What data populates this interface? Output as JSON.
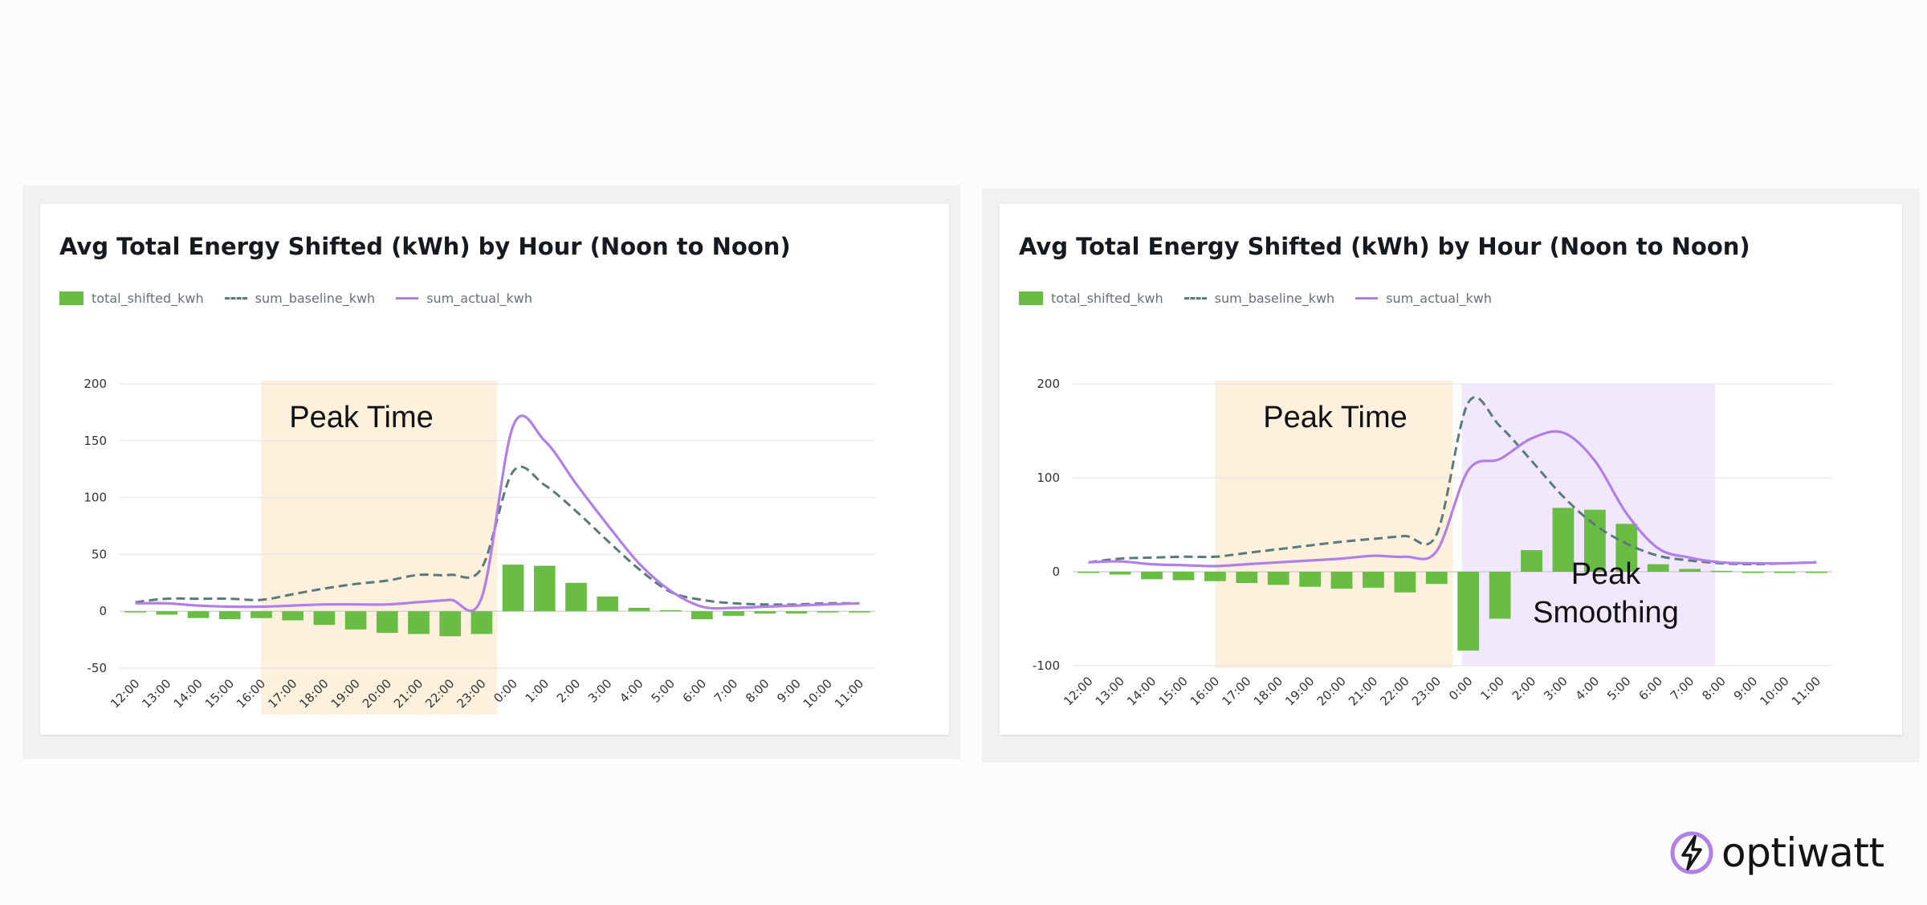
{
  "brand": {
    "name": "optiwatt",
    "logo_icon": "bolt-icon",
    "accent": "#b07fe8"
  },
  "colors": {
    "bar": "#69bd45",
    "baseline": "#5b7a7a",
    "actual": "#b07fe8",
    "peak_band": "#fdf0dc",
    "smoothing_band": "#f1e8fd"
  },
  "chart_data": [
    {
      "type": "bar",
      "title": "Avg Total Energy Shifted (kWh) by Hour (Noon to Noon)",
      "legend": [
        "total_shifted_kwh",
        "sum_baseline_kwh",
        "sum_actual_kwh"
      ],
      "categories": [
        "12:00",
        "13:00",
        "14:00",
        "15:00",
        "16:00",
        "17:00",
        "18:00",
        "19:00",
        "20:00",
        "21:00",
        "22:00",
        "23:00",
        "0:00",
        "1:00",
        "2:00",
        "3:00",
        "4:00",
        "5:00",
        "6:00",
        "7:00",
        "8:00",
        "9:00",
        "10:00",
        "11:00"
      ],
      "yticks": [
        "200",
        "150",
        "100",
        "50",
        "0",
        "-50"
      ],
      "ylim": [
        -50,
        200
      ],
      "grid": true,
      "series": [
        {
          "name": "total_shifted_kwh",
          "kind": "bar",
          "values": [
            -1,
            -3,
            -6,
            -7,
            -6,
            -8,
            -12,
            -16,
            -19,
            -20,
            -22,
            -20,
            41,
            40,
            25,
            13,
            3,
            1,
            -7,
            -4,
            -2,
            -2,
            -1,
            -1
          ]
        },
        {
          "name": "sum_baseline_kwh",
          "kind": "dashed-line",
          "values": [
            8,
            11,
            11,
            11,
            10,
            15,
            20,
            24,
            27,
            32,
            32,
            38,
            123,
            111,
            88,
            62,
            37,
            17,
            10,
            7,
            6,
            6,
            7,
            7
          ]
        },
        {
          "name": "sum_actual_kwh",
          "kind": "line",
          "values": [
            7,
            7,
            5,
            4,
            4,
            5,
            6,
            6,
            6,
            8,
            10,
            12,
            163,
            150,
            112,
            76,
            42,
            18,
            4,
            3,
            4,
            5,
            6,
            7
          ]
        }
      ],
      "bands": [
        {
          "label": "Peak Time",
          "from": 4.5,
          "to": 12.0,
          "color": "#fdf0dc"
        }
      ]
    },
    {
      "type": "bar",
      "title": "Avg Total Energy Shifted (kWh) by Hour (Noon to Noon)",
      "legend": [
        "total_shifted_kwh",
        "sum_baseline_kwh",
        "sum_actual_kwh"
      ],
      "categories": [
        "12:00",
        "13:00",
        "14:00",
        "15:00",
        "16:00",
        "17:00",
        "18:00",
        "19:00",
        "20:00",
        "21:00",
        "22:00",
        "23:00",
        "0:00",
        "1:00",
        "2:00",
        "3:00",
        "4:00",
        "5:00",
        "6:00",
        "7:00",
        "8:00",
        "9:00",
        "10:00",
        "11:00"
      ],
      "yticks": [
        "200",
        "100",
        "0",
        "-100"
      ],
      "ylim": [
        -100,
        200
      ],
      "grid": true,
      "series": [
        {
          "name": "total_shifted_kwh",
          "kind": "bar",
          "values": [
            -1,
            -3,
            -8,
            -9,
            -10,
            -12,
            -14,
            -16,
            -18,
            -17,
            -22,
            -13,
            -84,
            -50,
            23,
            68,
            66,
            51,
            8,
            3,
            1,
            -1,
            0,
            0
          ]
        },
        {
          "name": "sum_baseline_kwh",
          "kind": "dashed-line",
          "values": [
            10,
            14,
            15,
            16,
            16,
            20,
            24,
            28,
            32,
            35,
            38,
            40,
            180,
            155,
            118,
            80,
            50,
            30,
            17,
            12,
            9,
            8,
            9,
            10
          ]
        },
        {
          "name": "sum_actual_kwh",
          "kind": "line",
          "values": [
            10,
            11,
            8,
            7,
            6,
            8,
            10,
            12,
            14,
            17,
            16,
            22,
            108,
            120,
            142,
            148,
            118,
            62,
            25,
            15,
            10,
            9,
            9,
            10
          ]
        }
      ],
      "bands": [
        {
          "label": "Peak Time",
          "from": 4.5,
          "to": 12.0,
          "color": "#fdf0dc"
        },
        {
          "label": "Peak Smoothing",
          "label_lines": [
            "Peak",
            "Smoothing"
          ],
          "from": 12.3,
          "to": 20.3,
          "color": "#f1e8fd"
        }
      ]
    }
  ]
}
